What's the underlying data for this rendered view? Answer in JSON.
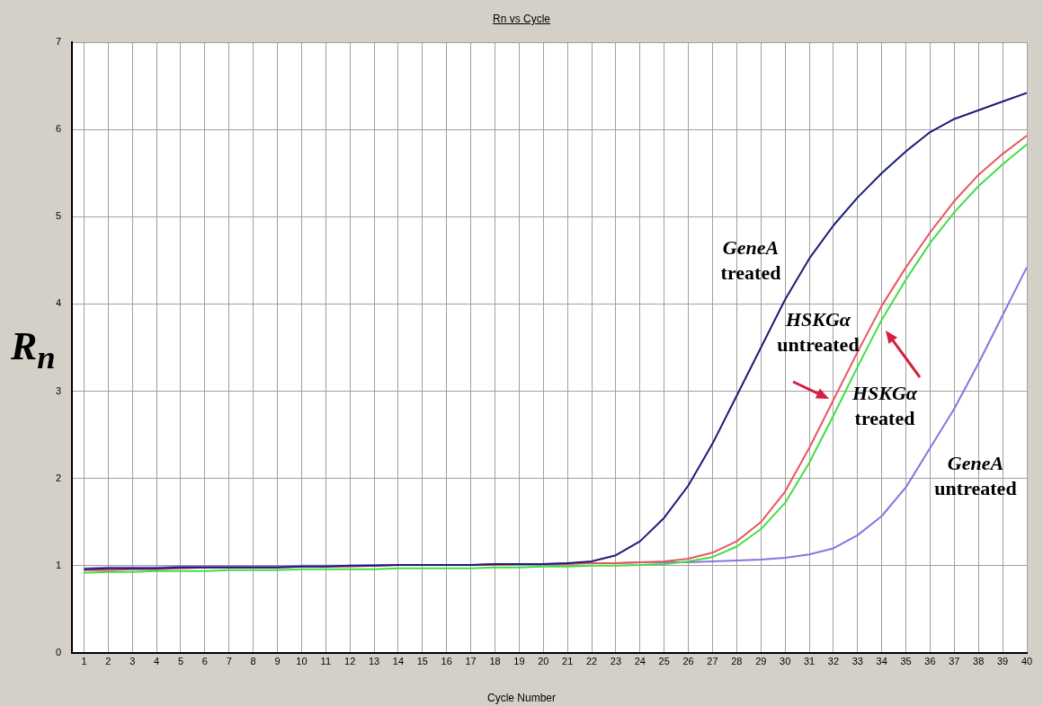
{
  "chart_data": {
    "type": "line",
    "title": "Rn vs Cycle",
    "xlabel": "Cycle Number",
    "ylabel": "R$_{n}$",
    "x": [
      1,
      2,
      3,
      4,
      5,
      6,
      7,
      8,
      9,
      10,
      11,
      12,
      13,
      14,
      15,
      16,
      17,
      18,
      19,
      20,
      21,
      22,
      23,
      24,
      25,
      26,
      27,
      28,
      29,
      30,
      31,
      32,
      33,
      34,
      35,
      36,
      37,
      38,
      39,
      40
    ],
    "series": [
      {
        "name": "GeneA treated",
        "color": "#1c1c78",
        "values": [
          0.96,
          0.97,
          0.97,
          0.97,
          0.98,
          0.98,
          0.98,
          0.98,
          0.98,
          0.99,
          0.99,
          1.0,
          1.0,
          1.01,
          1.01,
          1.01,
          1.01,
          1.02,
          1.02,
          1.02,
          1.03,
          1.05,
          1.12,
          1.28,
          1.55,
          1.92,
          2.4,
          2.95,
          3.5,
          4.05,
          4.52,
          4.9,
          5.22,
          5.5,
          5.75,
          5.97,
          6.12,
          6.22,
          6.32,
          6.42
        ]
      },
      {
        "name": "HSKGα untreated",
        "color": "#e8585e",
        "values": [
          0.95,
          0.95,
          0.96,
          0.96,
          0.97,
          0.98,
          0.98,
          0.98,
          0.98,
          0.99,
          0.99,
          0.99,
          1.0,
          1.01,
          1.01,
          1.01,
          1.01,
          1.01,
          1.02,
          1.02,
          1.02,
          1.03,
          1.03,
          1.04,
          1.05,
          1.08,
          1.15,
          1.28,
          1.5,
          1.85,
          2.35,
          2.9,
          3.45,
          3.98,
          4.42,
          4.82,
          5.18,
          5.48,
          5.72,
          5.93
        ]
      },
      {
        "name": "HSKGα treated",
        "color": "#44dd44",
        "values": [
          0.92,
          0.93,
          0.93,
          0.94,
          0.94,
          0.94,
          0.95,
          0.95,
          0.95,
          0.96,
          0.96,
          0.96,
          0.96,
          0.97,
          0.97,
          0.97,
          0.97,
          0.98,
          0.98,
          0.99,
          0.99,
          1.0,
          1.0,
          1.01,
          1.02,
          1.05,
          1.1,
          1.22,
          1.42,
          1.72,
          2.18,
          2.72,
          3.28,
          3.82,
          4.28,
          4.7,
          5.05,
          5.35,
          5.6,
          5.83
        ]
      },
      {
        "name": "GeneA untreated",
        "color": "#9070e0",
        "values": [
          0.97,
          0.98,
          0.98,
          0.98,
          0.99,
          0.99,
          0.99,
          0.99,
          0.99,
          1.0,
          1.0,
          1.0,
          1.01,
          1.01,
          1.01,
          1.01,
          1.01,
          1.02,
          1.02,
          1.02,
          1.03,
          1.03,
          1.03,
          1.04,
          1.04,
          1.04,
          1.05,
          1.06,
          1.07,
          1.09,
          1.13,
          1.2,
          1.35,
          1.57,
          1.9,
          2.35,
          2.8,
          3.32,
          3.87,
          4.42
        ]
      }
    ],
    "xlim": [
      0.5,
      40
    ],
    "xticks": [
      1,
      2,
      3,
      4,
      5,
      6,
      7,
      8,
      9,
      10,
      11,
      12,
      13,
      14,
      15,
      16,
      17,
      18,
      19,
      20,
      21,
      22,
      23,
      24,
      25,
      26,
      27,
      28,
      29,
      30,
      31,
      32,
      33,
      34,
      35,
      36,
      37,
      38,
      39,
      40
    ],
    "ylim": [
      0,
      7
    ],
    "yticks": [
      0,
      1,
      2,
      3,
      4,
      5,
      6,
      7
    ],
    "grid": true,
    "legend": false,
    "marker": "none",
    "line_style": "solid"
  }
}
